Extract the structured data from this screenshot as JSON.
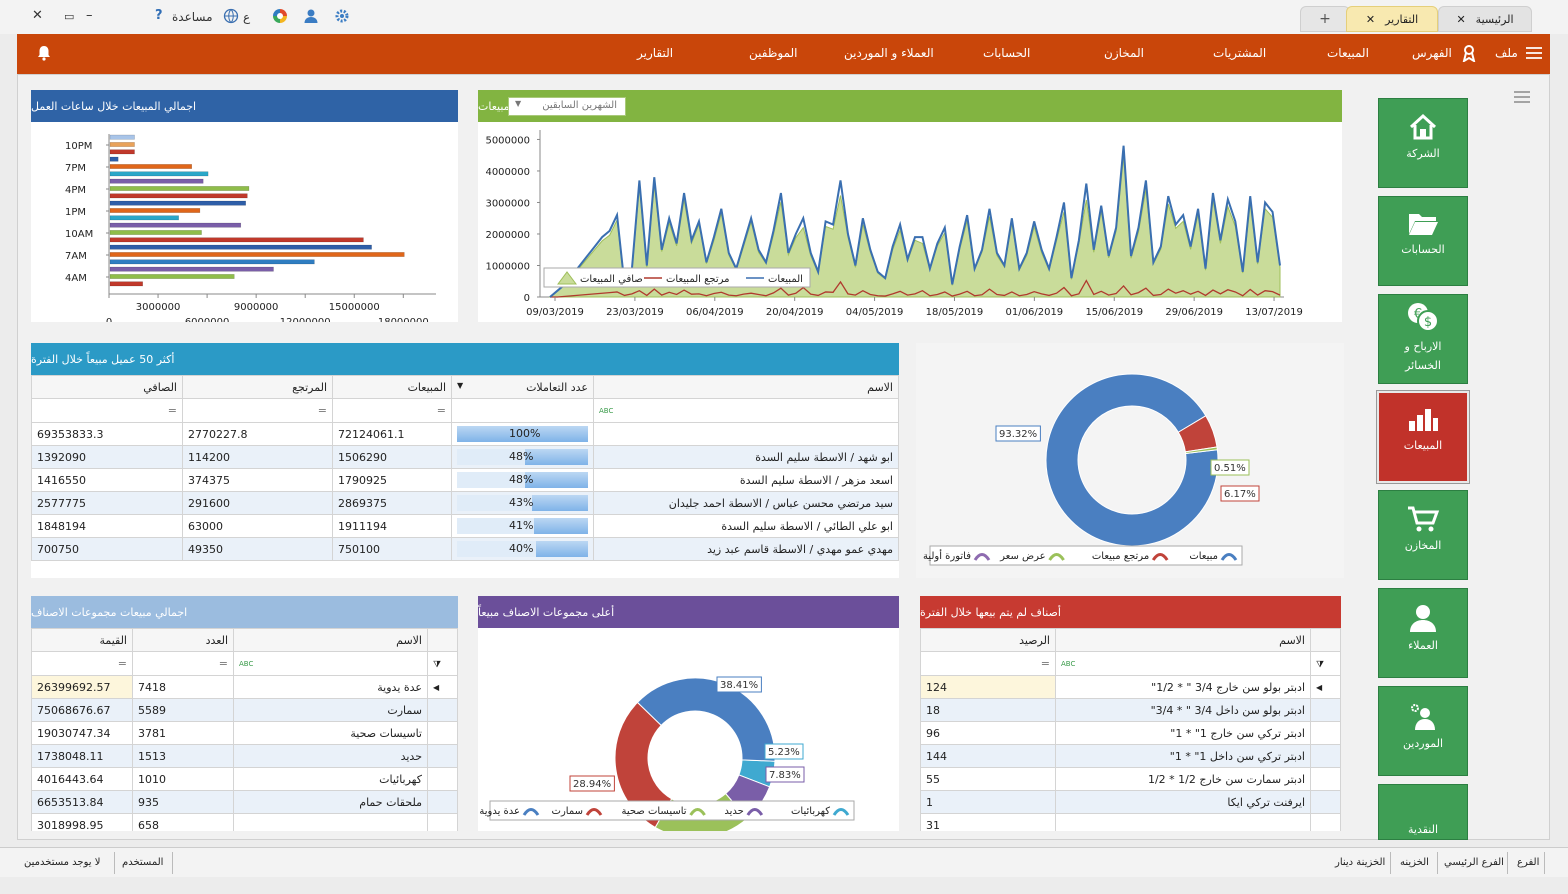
{
  "window": {
    "help_label": "مساعدة",
    "lang_label": "ع",
    "tabs": [
      {
        "label": "الرئيسية"
      },
      {
        "label": "التقارير"
      }
    ]
  },
  "menubar": {
    "file_label": "ملف",
    "index_label": "الفهرس",
    "items": [
      "المبيعات",
      "المشتريات",
      "المخازن",
      "الحسابات",
      "العملاء و الموردين",
      "الموظفين",
      "التقارير"
    ]
  },
  "tiles": [
    {
      "label": "الشركة",
      "icon": "home-icon"
    },
    {
      "label": "الحسابات",
      "icon": "folder-icon"
    },
    {
      "label": "الارباح و الخسائر",
      "icon": "money-icon"
    },
    {
      "label": "المبيعات",
      "icon": "bar-chart-icon"
    },
    {
      "label": "المخازن",
      "icon": "cart-icon"
    },
    {
      "label": "العملاء",
      "icon": "user-icon"
    },
    {
      "label": "الموردين",
      "icon": "supplier-icon"
    },
    {
      "label": "النقدية",
      "icon": "cash-icon"
    }
  ],
  "hours_panel": {
    "title": "اجمالي المبيعات خلال ساعات العمل"
  },
  "movement_panel": {
    "title": "حركة المبيعات",
    "period_select": "الشهرين السابقين"
  },
  "customers_panel": {
    "title": "أكثر 50 عميل مبيعاً خلال الفترة",
    "headers": {
      "name": "الاسم",
      "count": "عدد التعاملات",
      "sales": "المبيعات",
      "returns": "المرتجع",
      "net": "الصافي"
    },
    "rows": [
      {
        "name": "",
        "pct": "100%",
        "pct_value": 100,
        "sales": "72124061.1",
        "returns": "2770227.8",
        "net": "69353833.3"
      },
      {
        "name": "ابو شهد / الاسطة سليم السدة",
        "pct": "48%",
        "pct_value": 48,
        "sales": "1506290",
        "returns": "114200",
        "net": "1392090"
      },
      {
        "name": "اسعد مزهر / الاسطة سليم السدة",
        "pct": "48%",
        "pct_value": 48,
        "sales": "1790925",
        "returns": "374375",
        "net": "1416550"
      },
      {
        "name": "سيد مرتضي محسن عباس / الاسطة احمد جليدان",
        "pct": "43%",
        "pct_value": 43,
        "sales": "2869375",
        "returns": "291600",
        "net": "2577775"
      },
      {
        "name": "ابو علي الطائي / الاسطة سليم السدة",
        "pct": "41%",
        "pct_value": 41,
        "sales": "1911194",
        "returns": "63000",
        "net": "1848194"
      },
      {
        "name": "مهدي عمو مهدي / الاسطة قاسم عبد زيد",
        "pct": "40%",
        "pct_value": 40,
        "sales": "750100",
        "returns": "49350",
        "net": "700750"
      }
    ]
  },
  "groups_sales_panel": {
    "title": "اجمالي مبيعات مجموعات الاصناف",
    "headers": {
      "name": "الاسم",
      "count": "العدد",
      "value": "القيمة"
    },
    "rows": [
      {
        "name": "عدة يدوية",
        "count": "7418",
        "value": "26399692.57"
      },
      {
        "name": "سمارت",
        "count": "5589",
        "value": "75068676.67"
      },
      {
        "name": "تاسيسات صحية",
        "count": "3781",
        "value": "19030747.34"
      },
      {
        "name": "حديد",
        "count": "1513",
        "value": "1738048.11"
      },
      {
        "name": "كهربائيات",
        "count": "1010",
        "value": "4016443.64"
      },
      {
        "name": "ملحقات حمام",
        "count": "935",
        "value": "6653513.84"
      },
      {
        "name": "",
        "count": "658",
        "value": "3018998.95"
      }
    ]
  },
  "top_groups_panel": {
    "title": "أعلى مجموعات الاصناف مبيعاً"
  },
  "unsold_panel": {
    "title": "أصناف لم يتم بيعها خلال الفترة",
    "headers": {
      "name": "الاسم",
      "balance": "الرصيد"
    },
    "rows": [
      {
        "name": "ادبتر بولو سن خارج 3/4 \" * 1/2\"",
        "balance": "124"
      },
      {
        "name": "ادبتر بولو سن داخل 3/4 \" * 3/4\"",
        "balance": "18"
      },
      {
        "name": "ادبتر تركي سن خارج 1\" * 1\"",
        "balance": "96"
      },
      {
        "name": "ادبتر تركي سن داخل 1\" * 1\"",
        "balance": "144"
      },
      {
        "name": "ادبتر سمارت سن خارج 1/2 * 1/2",
        "balance": "55"
      },
      {
        "name": "ايرفنت تركي ايكا",
        "balance": "1"
      },
      {
        "name": "",
        "balance": "31"
      }
    ]
  },
  "statusbar": {
    "branch_label": "الفرع",
    "branch_value": "الفرع الرئيسي",
    "treasury_label": "الخزينه",
    "treasury_value": "الخزينة دينار",
    "user_label": "المستخدم",
    "user_value": "لا يوجد مستخدمين"
  },
  "chart_data": [
    {
      "type": "bar",
      "orientation": "horizontal",
      "title": "اجمالي المبيعات خلال ساعات العمل",
      "categories": [
        "3AM",
        "4AM",
        "5AM",
        "6AM",
        "7AM",
        "8AM",
        "9AM",
        "10AM",
        "11AM",
        "12PM",
        "1PM",
        "2PM",
        "3PM",
        "4PM",
        "5PM",
        "6PM",
        "7PM",
        "8PM",
        "9PM",
        "10PM",
        "11PM"
      ],
      "y_tick_labels": [
        "4AM",
        "7AM",
        "10AM",
        "1PM",
        "4PM",
        "7PM",
        "10PM"
      ],
      "values": [
        2000000,
        7600000,
        10000000,
        12500000,
        18000000,
        16000000,
        15500000,
        5600000,
        8000000,
        4200000,
        5500000,
        8300000,
        8400000,
        8500000,
        5700000,
        6000000,
        5000000,
        500000,
        1500000,
        1500000,
        1500000
      ],
      "colors": [
        "#c0392b",
        "#8fbd4a",
        "#7a5ea8",
        "#2f7dc1",
        "#e0661a",
        "#2e5ea8",
        "#c0392b",
        "#8fbd4a",
        "#7a5ea8",
        "#2aa7c8",
        "#e0661a",
        "#2e5ea8",
        "#c0392b",
        "#8fbd4a",
        "#7a5ea8",
        "#2aa7c8",
        "#e0661a",
        "#2e5ea8",
        "#c0392b",
        "#e9a25a",
        "#a8c4e8"
      ],
      "x_ticks": [
        0,
        3000000,
        6000000,
        9000000,
        12000000,
        15000000,
        18000000
      ],
      "xlim": [
        0,
        20000000
      ]
    },
    {
      "type": "area",
      "title": "حركة المبيعات",
      "x_tick_labels": [
        "09/03/2019",
        "23/03/2019",
        "06/04/2019",
        "20/04/2019",
        "04/05/2019",
        "18/05/2019",
        "01/06/2019",
        "15/06/2019",
        "29/06/2019",
        "13/07/2019"
      ],
      "y_ticks": [
        0,
        1000000,
        2000000,
        3000000,
        4000000,
        5000000
      ],
      "ylim": [
        0,
        5300000
      ],
      "series": [
        {
          "name": "المبيعات",
          "color": "#3a6fb0",
          "values": [
            0,
            200000,
            400000,
            700000,
            1000000,
            1300000,
            1600000,
            1900000,
            2100000,
            2600000,
            400000,
            900000,
            3700000,
            1000000,
            3800000,
            1500000,
            2500000,
            1700000,
            3300000,
            1800000,
            2400000,
            1100000,
            1900000,
            2800000,
            1400000,
            900000,
            1700000,
            2500000,
            1500000,
            1100000,
            2100000,
            3300000,
            1400000,
            2000000,
            2500000,
            1400000,
            800000,
            2400000,
            2300000,
            3700000,
            2000000,
            1000000,
            2500000,
            1500000,
            800000,
            600000,
            1600000,
            2300000,
            1200000,
            1900000,
            1900000,
            900000,
            1700000,
            2200000,
            400000,
            1600000,
            2600000,
            900000,
            1500000,
            2800000,
            1400000,
            1000000,
            2500000,
            900000,
            1400000,
            2400000,
            1500000,
            900000,
            1900000,
            3000000,
            600000,
            1800000,
            3600000,
            1500000,
            2900000,
            1300000,
            2200000,
            4800000,
            1300000,
            2200000,
            3700000,
            1100000,
            1600000,
            3200000,
            2300000,
            2600000,
            1600000,
            2800000,
            900000,
            3300000,
            1800000,
            3100000,
            2400000,
            800000,
            3200000,
            1100000,
            3000000,
            2700000,
            1000000
          ],
          "fill_color": "#c9dc9a"
        },
        {
          "name": "مرتجع المبيعات",
          "color": "#b03a2e",
          "values": [
            0,
            0,
            20000,
            40000,
            60000,
            80000,
            100000,
            120000,
            140000,
            160000,
            50000,
            100000,
            200000,
            50000,
            250000,
            60000,
            150000,
            80000,
            220000,
            90000,
            100000,
            40000,
            110000,
            150000,
            60000,
            40000,
            90000,
            120000,
            80000,
            40000,
            130000,
            280000,
            60000,
            120000,
            300000,
            90000,
            50000,
            160000,
            150000,
            480000,
            100000,
            60000,
            200000,
            80000,
            40000,
            30000,
            100000,
            180000,
            60000,
            100000,
            200000,
            40000,
            80000,
            160000,
            30000,
            90000,
            180000,
            40000,
            70000,
            250000,
            80000,
            50000,
            160000,
            40000,
            80000,
            170000,
            100000,
            50000,
            120000,
            300000,
            40000,
            100000,
            520000,
            80000,
            180000,
            60000,
            110000,
            350000,
            70000,
            140000,
            280000,
            50000,
            80000,
            250000,
            120000,
            200000,
            90000,
            180000,
            50000,
            220000,
            100000,
            230000,
            160000,
            40000,
            240000,
            60000,
            200000,
            170000,
            60000
          ]
        },
        {
          "name": "صافي المبيعات",
          "color": "#9fbf5a",
          "values": [
            0,
            200000,
            380000,
            660000,
            940000,
            1220000,
            1500000,
            1780000,
            1960000,
            2440000,
            350000,
            800000,
            3500000,
            950000,
            3550000,
            1440000,
            2350000,
            1620000,
            3080000,
            1710000,
            2300000,
            1060000,
            1790000,
            2650000,
            1340000,
            860000,
            1610000,
            2380000,
            1420000,
            1060000,
            1970000,
            3020000,
            1340000,
            1880000,
            2200000,
            1310000,
            750000,
            2240000,
            2150000,
            3220000,
            1900000,
            940000,
            2300000,
            1420000,
            760000,
            570000,
            1500000,
            2120000,
            1140000,
            1800000,
            1700000,
            860000,
            1620000,
            2040000,
            370000,
            1510000,
            2420000,
            860000,
            1430000,
            2550000,
            1320000,
            950000,
            2340000,
            860000,
            1320000,
            2230000,
            1400000,
            850000,
            1780000,
            2700000,
            560000,
            1700000,
            3080000,
            1420000,
            2720000,
            1240000,
            2090000,
            4450000,
            1230000,
            2060000,
            3420000,
            1050000,
            1520000,
            2950000,
            2180000,
            2400000,
            1510000,
            2620000,
            850000,
            3080000,
            1700000,
            2870000,
            2240000,
            760000,
            2960000,
            1040000,
            2800000,
            2530000,
            940000
          ]
        }
      ]
    },
    {
      "type": "pie",
      "variant": "donut",
      "labels": [
        "مبيعات",
        "مرتجع مبيعات",
        "عرض سعر",
        "فاتورة أولية"
      ],
      "values": [
        93.32,
        6.17,
        0.51,
        0
      ],
      "value_labels": [
        "93.32%",
        "6.17%",
        "0.51%",
        ""
      ],
      "colors": [
        "#4a7fc1",
        "#c0433a",
        "#9bc15a",
        "#8e6bb0"
      ]
    },
    {
      "type": "pie",
      "variant": "donut",
      "labels": [
        "كهربائيات",
        "حديد",
        "تاسيسات صحية",
        "سمارت",
        "عدة يدوية"
      ],
      "values": [
        5.23,
        7.83,
        19.59,
        28.94,
        38.41
      ],
      "value_labels": [
        "5.23%",
        "7.83%",
        "",
        "28.94%",
        "38.41%"
      ],
      "colors": [
        "#3fa9d0",
        "#7a5ea8",
        "#9bc15a",
        "#c0433a",
        "#4a7fc1"
      ]
    }
  ]
}
